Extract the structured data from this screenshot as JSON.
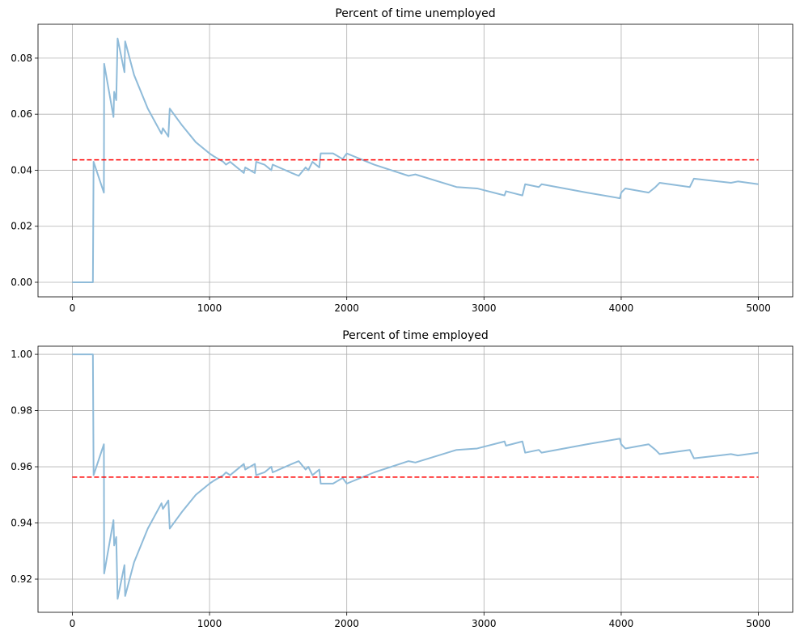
{
  "chart_data": [
    {
      "type": "line",
      "title": "Percent of time unemployed",
      "x": [
        0,
        150,
        155,
        230,
        232,
        300,
        305,
        320,
        330,
        380,
        385,
        450,
        550,
        650,
        660,
        700,
        710,
        800,
        900,
        1000,
        1030,
        1100,
        1120,
        1150,
        1250,
        1260,
        1330,
        1340,
        1400,
        1450,
        1460,
        1600,
        1650,
        1700,
        1720,
        1750,
        1800,
        1810,
        1900,
        1970,
        2000,
        2200,
        2450,
        2500,
        2800,
        2950,
        3150,
        3160,
        3280,
        3300,
        3400,
        3420,
        3750,
        3990,
        4000,
        4030,
        4200,
        4250,
        4280,
        4500,
        4530,
        4800,
        4850,
        5000
      ],
      "values": [
        0,
        0,
        0.043,
        0.032,
        0.078,
        0.059,
        0.068,
        0.065,
        0.087,
        0.075,
        0.086,
        0.074,
        0.062,
        0.053,
        0.055,
        0.052,
        0.062,
        0.056,
        0.05,
        0.046,
        0.045,
        0.043,
        0.042,
        0.043,
        0.039,
        0.041,
        0.039,
        0.043,
        0.042,
        0.04,
        0.042,
        0.039,
        0.038,
        0.041,
        0.04,
        0.043,
        0.041,
        0.046,
        0.046,
        0.044,
        0.046,
        0.042,
        0.038,
        0.0385,
        0.034,
        0.0335,
        0.031,
        0.0325,
        0.031,
        0.035,
        0.034,
        0.035,
        0.032,
        0.03,
        0.032,
        0.0335,
        0.032,
        0.034,
        0.0355,
        0.034,
        0.037,
        0.0355,
        0.036,
        0.035
      ],
      "color": "#8fbbd9",
      "reference_line": 0.0437,
      "reference_color": "#ff0000",
      "xlim": [
        -250,
        5250
      ],
      "xticks": [
        0,
        1000,
        2000,
        3000,
        4000,
        5000
      ],
      "ylim": [
        -0.0052,
        0.0921
      ],
      "yticks": [
        {
          "value": 0,
          "label": "0.00"
        },
        0.02,
        0.04,
        0.06,
        0.08
      ],
      "grid": true
    },
    {
      "type": "line",
      "title": "Percent of time employed",
      "x": [
        0,
        150,
        155,
        230,
        232,
        300,
        305,
        320,
        330,
        380,
        385,
        450,
        550,
        650,
        660,
        700,
        710,
        800,
        900,
        1000,
        1030,
        1100,
        1120,
        1150,
        1250,
        1260,
        1330,
        1340,
        1400,
        1450,
        1460,
        1600,
        1650,
        1700,
        1720,
        1750,
        1800,
        1810,
        1900,
        1970,
        2000,
        2200,
        2450,
        2500,
        2800,
        2950,
        3150,
        3160,
        3280,
        3300,
        3400,
        3420,
        3750,
        3990,
        4000,
        4030,
        4200,
        4250,
        4280,
        4500,
        4530,
        4800,
        4850,
        5000
      ],
      "values": [
        1,
        1,
        0.957,
        0.968,
        0.922,
        0.941,
        0.932,
        0.935,
        0.913,
        0.925,
        0.914,
        0.926,
        0.938,
        0.947,
        0.945,
        0.948,
        0.938,
        0.944,
        0.95,
        0.954,
        0.955,
        0.957,
        0.958,
        0.957,
        0.961,
        0.959,
        0.961,
        0.957,
        0.958,
        0.96,
        0.958,
        0.961,
        0.962,
        0.959,
        0.96,
        0.957,
        0.959,
        0.954,
        0.954,
        0.956,
        0.954,
        0.958,
        0.962,
        0.9615,
        0.966,
        0.9665,
        0.969,
        0.9675,
        0.969,
        0.965,
        0.966,
        0.965,
        0.968,
        0.97,
        0.968,
        0.9665,
        0.968,
        0.966,
        0.9645,
        0.966,
        0.963,
        0.9645,
        0.964,
        0.965
      ],
      "color": "#8fbbd9",
      "reference_line": 0.9563,
      "reference_color": "#ff0000",
      "xlim": [
        -250,
        5250
      ],
      "xticks": [
        0,
        1000,
        2000,
        3000,
        4000,
        5000
      ],
      "ylim": [
        0.9082,
        1.0029
      ],
      "yticks": [
        0.92,
        0.94,
        0.96,
        0.98,
        {
          "value": 1,
          "label": "1.00"
        }
      ],
      "grid": true
    }
  ]
}
